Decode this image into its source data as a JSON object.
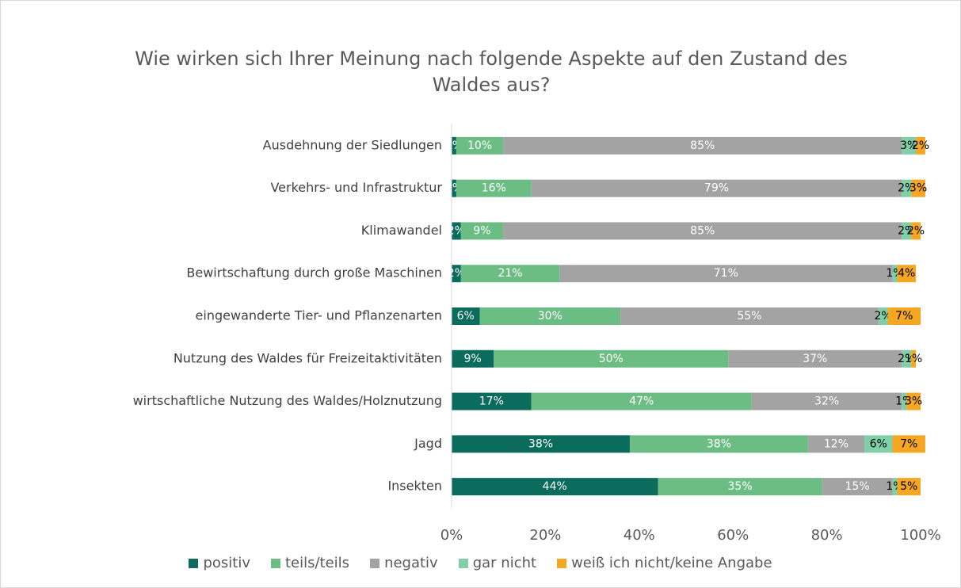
{
  "chart_data": {
    "type": "stacked_bar_horizontal",
    "title": "Wie wirken sich Ihrer Meinung nach folgende Aspekte auf den Zustand des Waldes aus?",
    "categories": [
      "Ausdehnung der Siedlungen",
      "Verkehrs- und Infrastruktur",
      "Klimawandel",
      "Bewirtschaftung durch große Maschinen",
      "eingewanderte Tier- und Pflanzenarten",
      "Nutzung des Waldes für Freizeitaktivitäten",
      "wirtschaftliche Nutzung des Waldes/Holznutzung",
      "Jagd",
      "Insekten"
    ],
    "series": [
      {
        "name": "positiv",
        "color": "#0b6b5c",
        "label_color": "#ffffff",
        "values": [
          1,
          1,
          2,
          2,
          6,
          9,
          17,
          38,
          44
        ],
        "value_labels": [
          "1%",
          "1%",
          "2%",
          "2%",
          "6%",
          "9%",
          "17%",
          "38%",
          "44%"
        ]
      },
      {
        "name": "teils/teils",
        "color": "#6cbd84",
        "label_color": "#ffffff",
        "values": [
          10,
          16,
          9,
          21,
          30,
          50,
          47,
          38,
          35
        ],
        "value_labels": [
          "10%",
          "16%",
          "9%",
          "21%",
          "30%",
          "50%",
          "47%",
          "38%",
          "35%"
        ]
      },
      {
        "name": "negativ",
        "color": "#a3a3a3",
        "label_color": "#ffffff",
        "values": [
          85,
          79,
          85,
          71,
          55,
          37,
          32,
          12,
          15
        ],
        "value_labels": [
          "85%",
          "79%",
          "85%",
          "71%",
          "55%",
          "37%",
          "32%",
          "12%",
          "15%"
        ]
      },
      {
        "name": "gar nicht",
        "color": "#80cfa9",
        "label_color": "#000000",
        "values": [
          3,
          2,
          2,
          1,
          2,
          2,
          1,
          6,
          1
        ],
        "value_labels": [
          "3%",
          "2%",
          "2%",
          "1%",
          "2%",
          "2%",
          "1%",
          "6%",
          "1%"
        ]
      },
      {
        "name": "weiß ich nicht/keine Angabe",
        "color": "#f5a623",
        "label_color": "#000000",
        "values": [
          2,
          3,
          2,
          4,
          7,
          1,
          3,
          7,
          5
        ],
        "value_labels": [
          "2%",
          "3%",
          "2%",
          "4%",
          "7%",
          "1%",
          "3%",
          "7%",
          "5%"
        ]
      }
    ],
    "xlim": [
      0,
      100
    ],
    "xticks": [
      {
        "value": 0,
        "label": "0%"
      },
      {
        "value": 20,
        "label": "20%"
      },
      {
        "value": 40,
        "label": "40%"
      },
      {
        "value": 60,
        "label": "60%"
      },
      {
        "value": 80,
        "label": "80%"
      },
      {
        "value": 100,
        "label": "100%"
      }
    ],
    "grid": false,
    "legend": "bottom"
  }
}
